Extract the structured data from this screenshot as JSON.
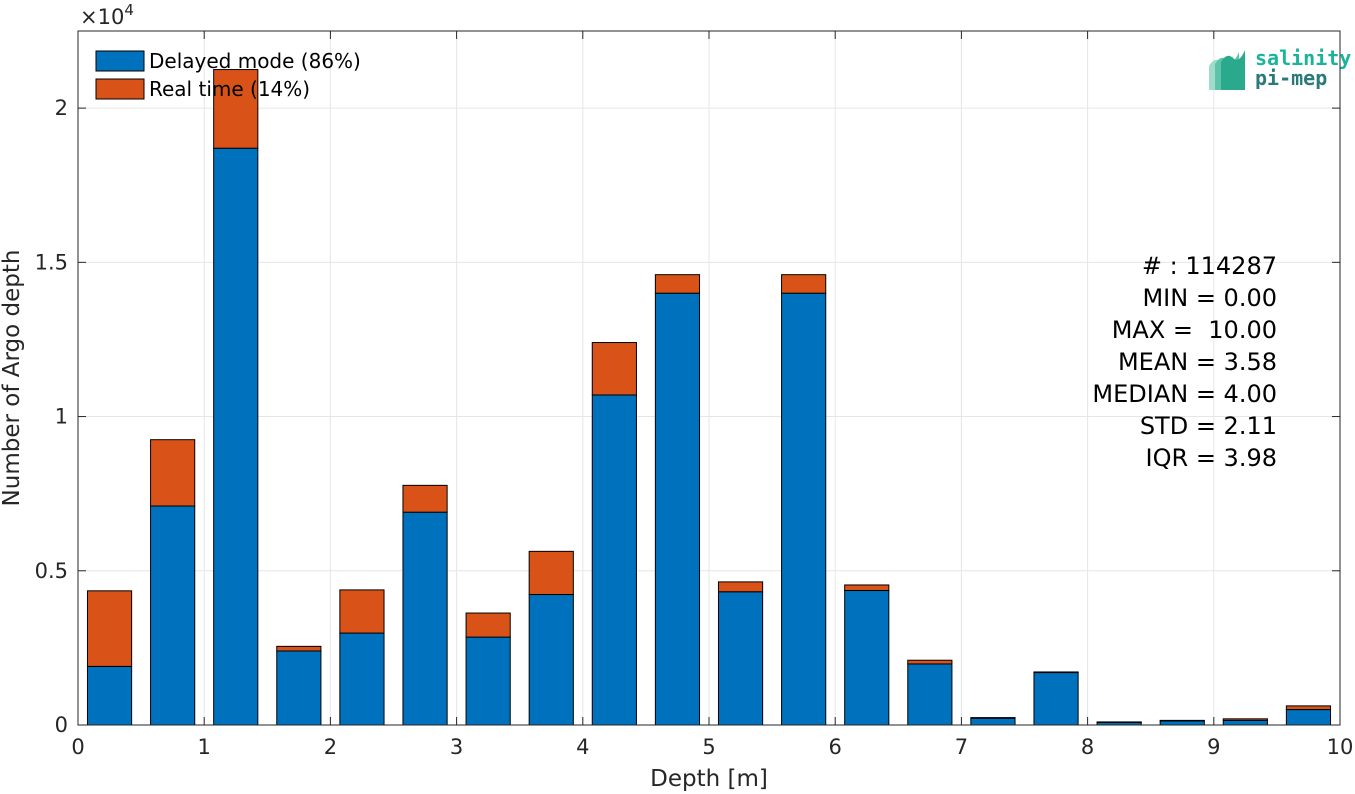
{
  "chart_data": {
    "type": "bar",
    "stacked": true,
    "xlabel": "Depth [m]",
    "ylabel": "Number of Argo depth",
    "y_exponent_label": "×10",
    "y_exponent": "4",
    "xlim": [
      0,
      10
    ],
    "ylim": [
      0,
      22500
    ],
    "xticks": [
      "0",
      "1",
      "2",
      "3",
      "4",
      "5",
      "6",
      "7",
      "8",
      "9",
      "10"
    ],
    "yticks": [
      {
        "value": 0,
        "label": "0"
      },
      {
        "value": 5000,
        "label": "0.5"
      },
      {
        "value": 10000,
        "label": "1"
      },
      {
        "value": 15000,
        "label": "1.5"
      },
      {
        "value": 20000,
        "label": "2"
      }
    ],
    "grid": true,
    "legend_placement": "top-left",
    "bin_width": 0.35,
    "x": [
      0.25,
      0.75,
      1.25,
      1.75,
      2.25,
      2.75,
      3.25,
      3.75,
      4.25,
      4.75,
      5.25,
      5.75,
      6.25,
      6.75,
      7.25,
      7.75,
      8.25,
      8.75,
      9.25,
      9.75
    ],
    "series": [
      {
        "name": "Delayed mode (86%)",
        "color": "#0072BD",
        "values": [
          1900,
          7100,
          18700,
          2400,
          2980,
          6900,
          2850,
          4230,
          10700,
          14000,
          4320,
          14000,
          4360,
          1980,
          220,
          1700,
          80,
          130,
          150,
          500
        ]
      },
      {
        "name": "Real time (14%)",
        "color": "#D95319",
        "values": [
          2450,
          2150,
          2550,
          150,
          1400,
          870,
          780,
          1400,
          1700,
          600,
          320,
          600,
          180,
          120,
          20,
          20,
          20,
          20,
          50,
          120
        ]
      }
    ]
  },
  "stats": {
    "count": "# : 114287",
    "min": "MIN = 0.00",
    "max": "MAX =  10.00",
    "mean": "MEAN = 3.58",
    "median": "MEDIAN = 4.00",
    "std": "STD = 2.11",
    "iqr": "IQR = 3.98"
  },
  "logo": {
    "line1": "salinity",
    "line2": "pi-mep",
    "color1": "#1bb39a",
    "color2": "#2a7a7a"
  }
}
